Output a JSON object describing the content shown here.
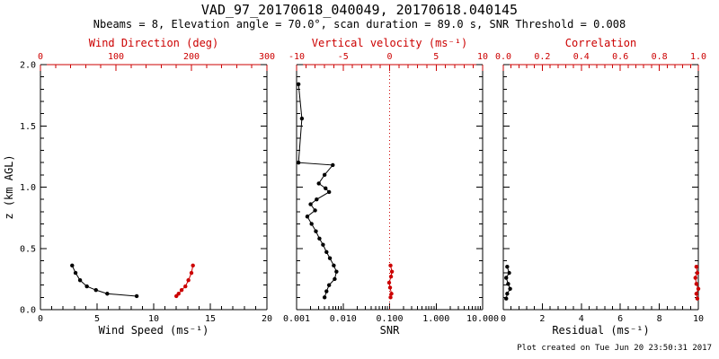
{
  "title": "VAD_97_20170618_040049, 20170618.040145",
  "subtitle": "Nbeams = 8, Elevation angle = 70.0°, scan duration = 89.0 s, SNR Threshold = 0.008",
  "footer": "Plot created on Tue Jun 20 23:50:31 2017",
  "colors": {
    "primary": "#000000",
    "secondary": "#cc0000",
    "background": "#ffffff"
  },
  "chart_data": [
    {
      "type": "scatter",
      "name": "wind-speed-direction-panel",
      "x_axis": {
        "label": "Wind Speed (ms⁻¹)",
        "scale": "linear",
        "range": [
          0,
          20
        ],
        "ticks": [
          0,
          5,
          10,
          15,
          20
        ],
        "tick_labels": [
          "0",
          "5",
          "10",
          "15",
          "20"
        ]
      },
      "top_axis": {
        "label": "Wind Direction (deg)",
        "scale": "linear",
        "range": [
          0,
          300
        ],
        "ticks": [
          0,
          100,
          200,
          300
        ],
        "tick_labels": [
          "0",
          "100",
          "200",
          "300"
        ]
      },
      "y_axis": {
        "label": "z (km AGL)",
        "scale": "linear",
        "range": [
          0,
          2
        ],
        "ticks": [
          0,
          0.5,
          1,
          1.5,
          2
        ],
        "tick_labels": [
          "0.0",
          "0.5",
          "1.0",
          "1.5",
          "2.0"
        ]
      },
      "series": [
        {
          "name": "wind-speed",
          "axis": "bottom",
          "color": "#000000",
          "x": [
            2.8,
            3.1,
            3.5,
            4.1,
            4.9,
            5.9,
            8.5
          ],
          "y": [
            0.36,
            0.3,
            0.24,
            0.19,
            0.16,
            0.13,
            0.11
          ]
        },
        {
          "name": "wind-direction",
          "axis": "top",
          "color": "#cc0000",
          "x": [
            202,
            200,
            196,
            192,
            187,
            183,
            180
          ],
          "y": [
            0.36,
            0.3,
            0.24,
            0.19,
            0.16,
            0.13,
            0.11
          ]
        }
      ]
    },
    {
      "type": "scatter",
      "name": "snr-vertical-velocity-panel",
      "x_axis": {
        "label": "SNR",
        "scale": "log",
        "range": [
          0.001,
          10
        ],
        "ticks": [
          0.001,
          0.01,
          0.1,
          1,
          10
        ],
        "tick_labels": [
          "0.001",
          "0.010",
          "0.100",
          "1.000",
          "10.000"
        ]
      },
      "top_axis": {
        "label": "Vertical velocity (ms⁻¹)",
        "scale": "linear",
        "range": [
          -10,
          10
        ],
        "ticks": [
          -10,
          -5,
          0,
          5,
          10
        ],
        "tick_labels": [
          "-10",
          "-5",
          "0",
          "5",
          "10"
        ]
      },
      "y_axis": {
        "label": "",
        "scale": "linear",
        "range": [
          0,
          2
        ],
        "ticks": [
          0,
          0.5,
          1,
          1.5,
          2
        ],
        "tick_labels": []
      },
      "reference_line": {
        "axis": "top",
        "value": 0,
        "color": "#cc0000",
        "style": "dotted"
      },
      "series": [
        {
          "name": "snr",
          "axis": "bottom",
          "color": "#000000",
          "x": [
            0.0011,
            0.0013,
            0.0011,
            0.006,
            0.004,
            0.003,
            0.0042,
            0.005,
            0.0027,
            0.002,
            0.0025,
            0.0017,
            0.0021,
            0.0026,
            0.0031,
            0.0037,
            0.0044,
            0.0052,
            0.0063,
            0.0072,
            0.0066,
            0.005,
            0.0044,
            0.004
          ],
          "y": [
            1.84,
            1.56,
            1.2,
            1.18,
            1.1,
            1.03,
            0.99,
            0.96,
            0.9,
            0.86,
            0.81,
            0.76,
            0.7,
            0.64,
            0.58,
            0.53,
            0.47,
            0.42,
            0.36,
            0.31,
            0.25,
            0.2,
            0.15,
            0.1
          ]
        },
        {
          "name": "vertical-velocity",
          "axis": "top",
          "color": "#cc0000",
          "x": [
            0.1,
            0.25,
            0.15,
            -0.05,
            0.05,
            0.2,
            0.1
          ],
          "y": [
            0.36,
            0.31,
            0.27,
            0.22,
            0.18,
            0.13,
            0.1
          ]
        }
      ]
    },
    {
      "type": "scatter",
      "name": "residual-correlation-panel",
      "x_axis": {
        "label": "Residual (ms⁻¹)",
        "scale": "linear",
        "range": [
          0,
          10
        ],
        "ticks": [
          0,
          2,
          4,
          6,
          8,
          10
        ],
        "tick_labels": [
          "0",
          "2",
          "4",
          "6",
          "8",
          "10"
        ]
      },
      "top_axis": {
        "label": "Correlation",
        "scale": "linear",
        "range": [
          0,
          1
        ],
        "ticks": [
          0,
          0.2,
          0.4,
          0.6,
          0.8,
          1
        ],
        "tick_labels": [
          "0.0",
          "0.2",
          "0.4",
          "0.6",
          "0.8",
          "1.0"
        ]
      },
      "y_axis": {
        "label": "",
        "scale": "linear",
        "range": [
          0,
          2
        ],
        "ticks": [
          0,
          0.5,
          1,
          1.5,
          2
        ],
        "tick_labels": []
      },
      "series": [
        {
          "name": "residual",
          "axis": "bottom",
          "color": "#000000",
          "x": [
            0.2,
            0.3,
            0.15,
            0.25,
            0.35,
            0.2,
            0.15
          ],
          "y": [
            0.35,
            0.3,
            0.26,
            0.21,
            0.17,
            0.13,
            0.09
          ]
        },
        {
          "name": "correlation",
          "axis": "top",
          "color": "#cc0000",
          "x": [
            0.99,
            0.995,
            0.985,
            0.99,
            1.0,
            0.99,
            0.995
          ],
          "y": [
            0.35,
            0.3,
            0.26,
            0.21,
            0.17,
            0.13,
            0.09
          ]
        }
      ]
    }
  ]
}
